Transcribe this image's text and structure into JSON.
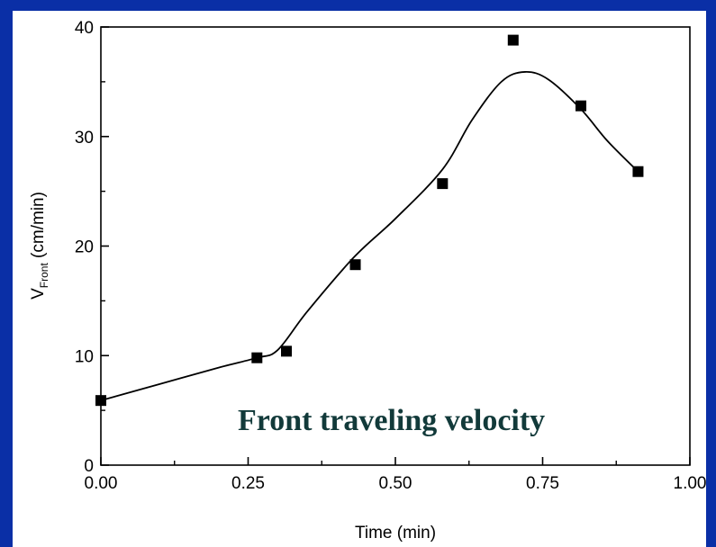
{
  "chart_data": {
    "type": "scatter",
    "title": "",
    "xlabel": "Time (min)",
    "ylabel_main": "V",
    "ylabel_sub": "Front",
    "ylabel_unit": " (cm/min)",
    "xlim": [
      0,
      1.0
    ],
    "ylim": [
      0,
      40
    ],
    "xticks": [
      "0.00",
      "0.25",
      "0.50",
      "0.75",
      "1.00"
    ],
    "yticks": [
      "0",
      "10",
      "20",
      "30",
      "40"
    ],
    "grid": false,
    "annotation": "Front traveling velocity",
    "series": [
      {
        "marker": "square",
        "x": [
          0.0,
          0.265,
          0.315,
          0.432,
          0.58,
          0.7,
          0.815,
          0.912
        ],
        "y": [
          5.9,
          9.8,
          10.4,
          18.3,
          25.7,
          38.8,
          32.8,
          26.8
        ]
      }
    ],
    "fit_curve": {
      "x": [
        0.0,
        0.1,
        0.2,
        0.265,
        0.3,
        0.35,
        0.43,
        0.5,
        0.58,
        0.63,
        0.68,
        0.72,
        0.76,
        0.815,
        0.86,
        0.912
      ],
      "y": [
        5.9,
        7.4,
        8.9,
        9.8,
        10.5,
        14.0,
        19.0,
        22.5,
        27.0,
        31.5,
        35.0,
        35.9,
        35.2,
        32.5,
        29.6,
        26.8
      ]
    },
    "colors": {
      "background": "#0a2fa6",
      "panel": "#ffffff",
      "marks": "#000000",
      "annotation": "#123a3a"
    }
  }
}
